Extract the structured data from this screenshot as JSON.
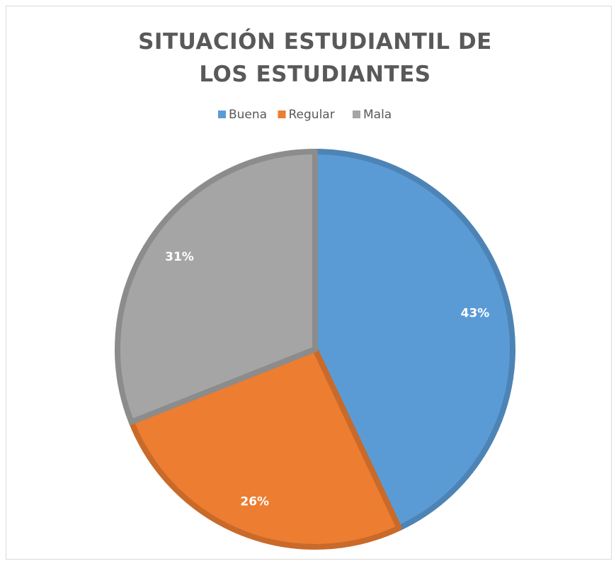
{
  "chart_data": {
    "type": "pie",
    "title": "SITUACIÓN ESTUDIANTIL DE LOS ESTUDIANTES",
    "categories": [
      "Buena",
      "Regular",
      "Mala"
    ],
    "values": [
      43,
      26,
      31
    ],
    "value_labels": [
      "43%",
      "26%",
      "31%"
    ],
    "colors": [
      "#5b9bd5",
      "#ed7d31",
      "#a5a5a5"
    ],
    "legend": "top"
  }
}
